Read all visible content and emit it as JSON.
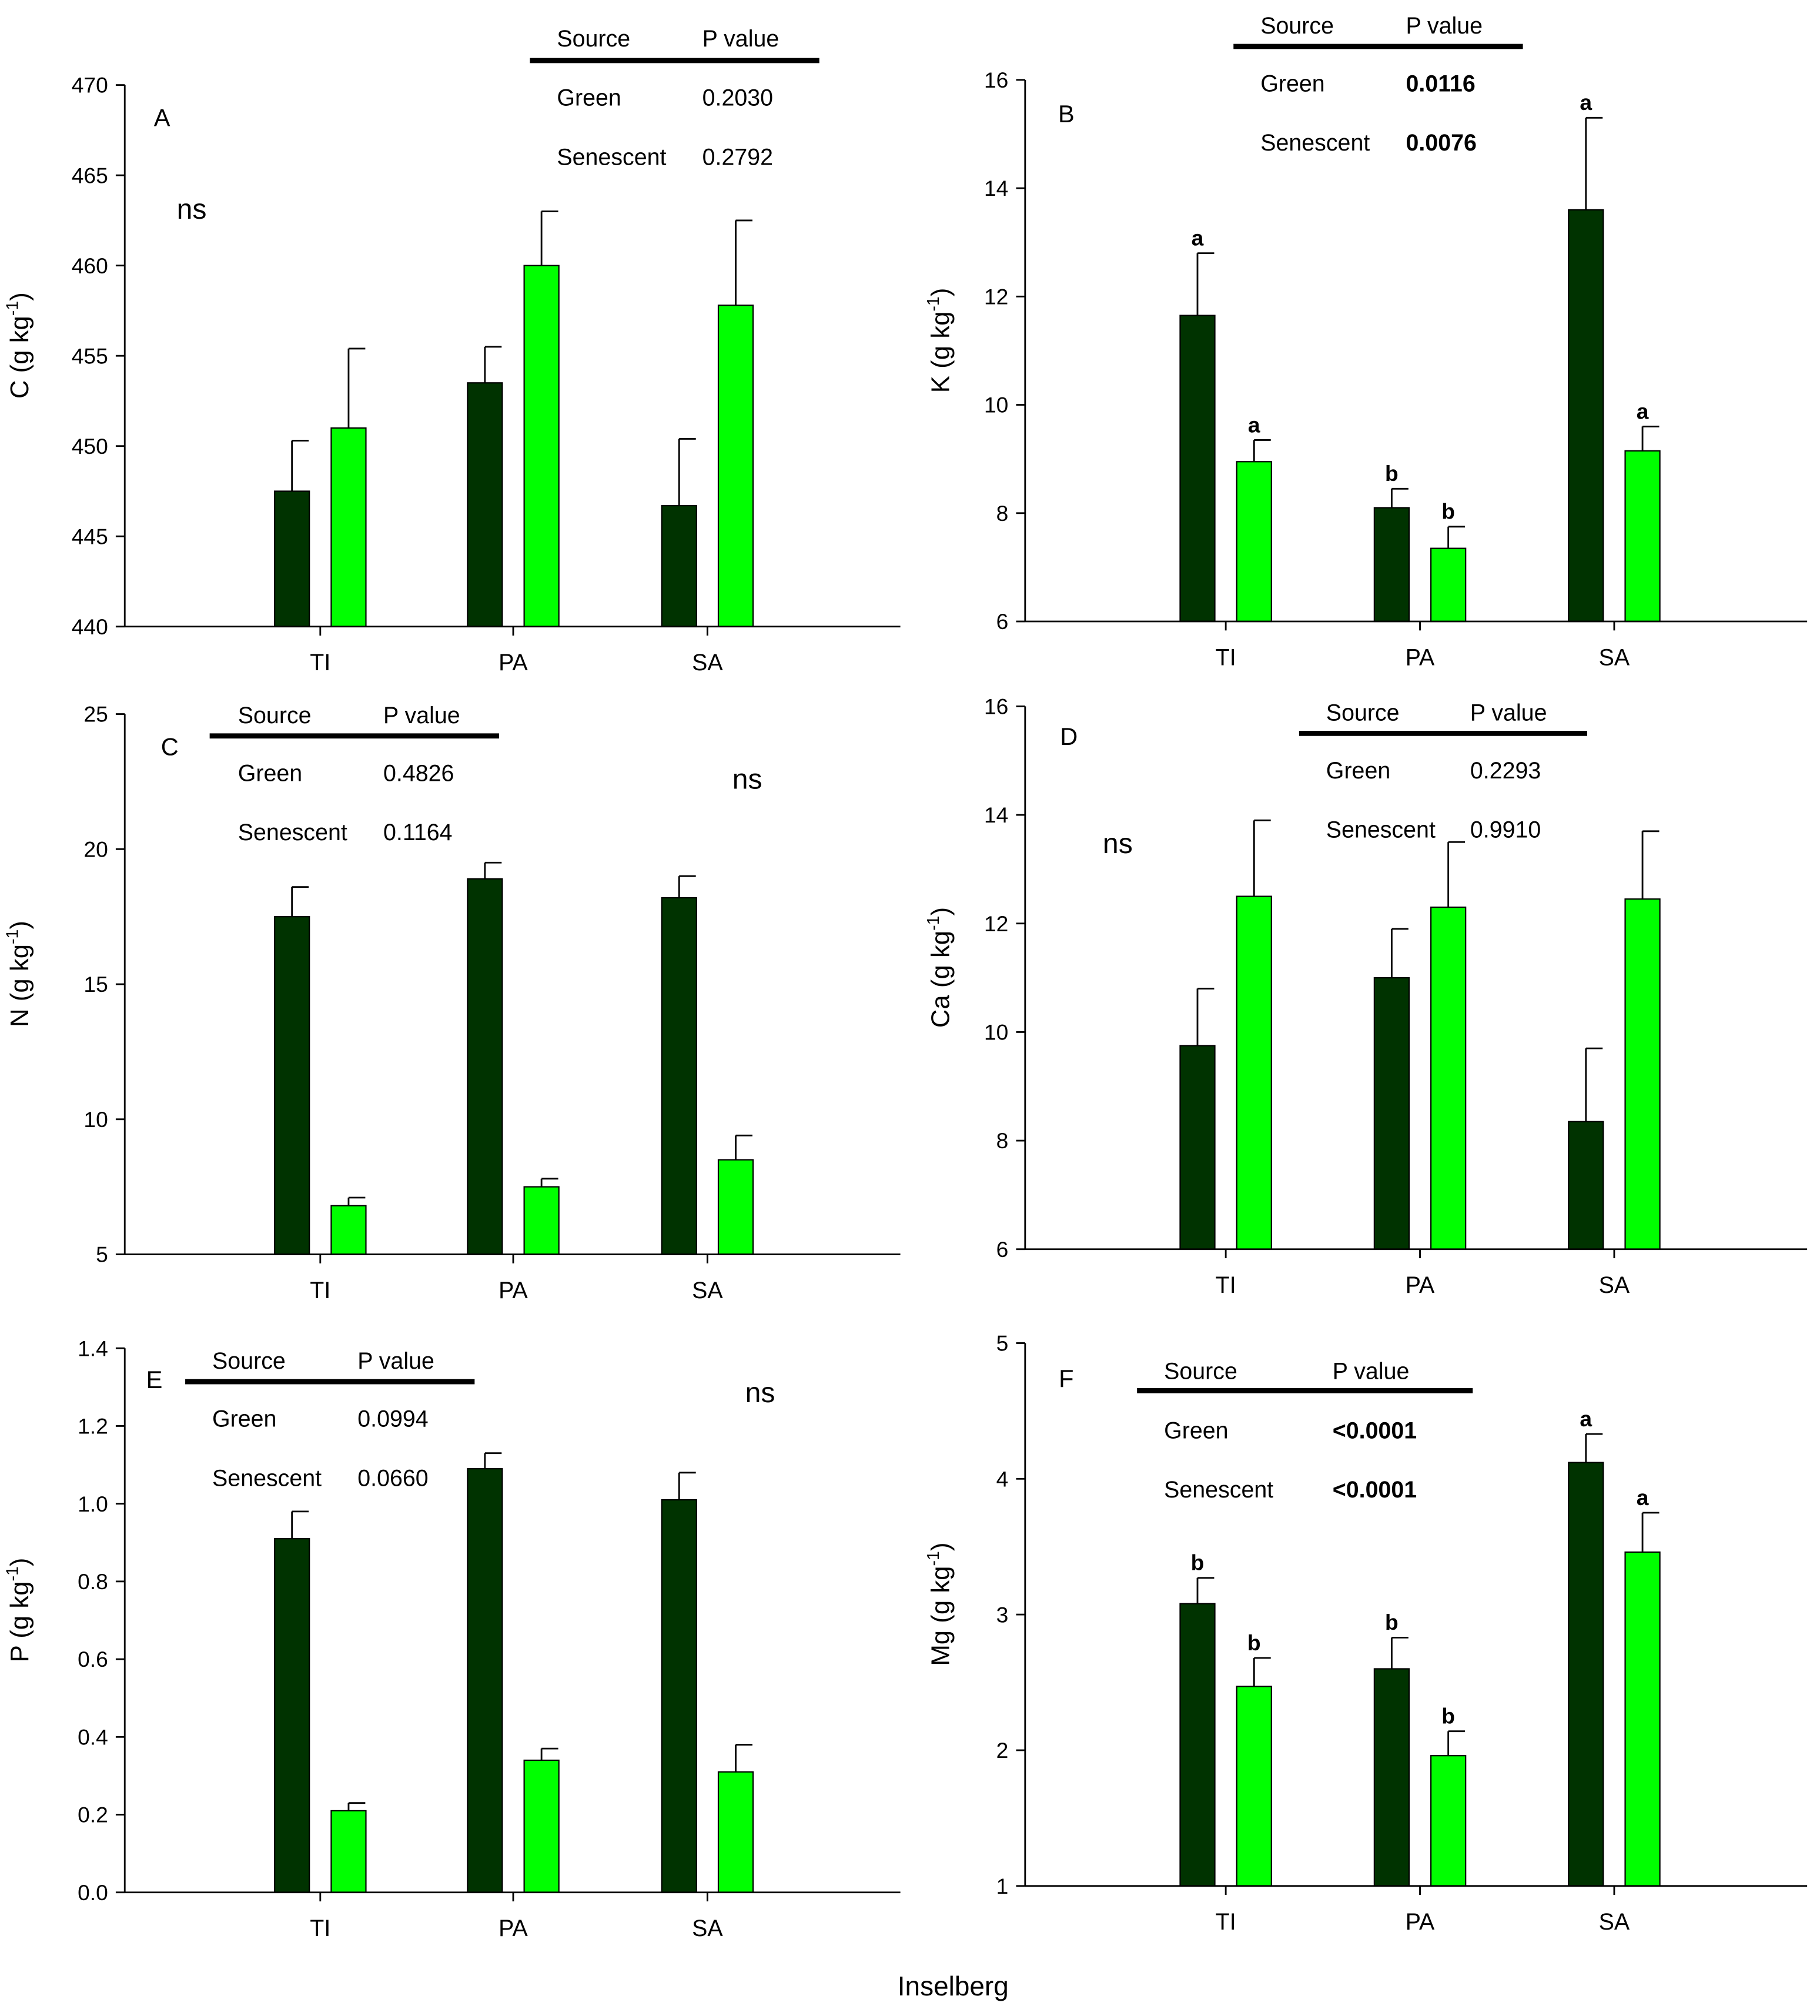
{
  "xlabel": "Inselberg",
  "legend": {
    "series": [
      "Green",
      "Senescent"
    ],
    "colors": [
      "#003300",
      "#00ff00"
    ]
  },
  "chart_data": [
    {
      "panel": "A",
      "type": "bar",
      "ylabel_main": "C (g kg",
      "ylabel_sup": "-1",
      "ylabel_end": ")",
      "ylim": [
        440,
        470
      ],
      "yticks": [
        440,
        445,
        450,
        455,
        460,
        465,
        470
      ],
      "categories": [
        "TI",
        "PA",
        "SA"
      ],
      "series": [
        {
          "name": "Green",
          "values": [
            447.5,
            453.5,
            446.7
          ],
          "errors": [
            2.8,
            2.0,
            3.7
          ],
          "letters": []
        },
        {
          "name": "Senescent",
          "values": [
            451.0,
            460.0,
            457.8
          ],
          "errors": [
            4.4,
            3.0,
            4.7
          ],
          "letters": []
        }
      ],
      "note": "ns",
      "table": {
        "header": [
          "Source",
          "P value"
        ],
        "rows": [
          [
            "Green",
            "0.2030"
          ],
          [
            "Senescent",
            "0.2792"
          ]
        ],
        "bold": false
      }
    },
    {
      "panel": "B",
      "type": "bar",
      "ylabel_main": "K (g kg",
      "ylabel_sup": "-1",
      "ylabel_end": ")",
      "ylim": [
        6,
        16
      ],
      "yticks": [
        6,
        8,
        10,
        12,
        14,
        16
      ],
      "categories": [
        "TI",
        "PA",
        "SA"
      ],
      "series": [
        {
          "name": "Green",
          "values": [
            11.65,
            8.1,
            13.6
          ],
          "errors": [
            1.15,
            0.35,
            1.7
          ],
          "letters": [
            "a",
            "b",
            "a"
          ]
        },
        {
          "name": "Senescent",
          "values": [
            8.95,
            7.35,
            9.15
          ],
          "errors": [
            0.4,
            0.4,
            0.45
          ],
          "letters": [
            "a",
            "b",
            "a"
          ]
        }
      ],
      "note": "",
      "table": {
        "header": [
          "Source",
          "P value"
        ],
        "rows": [
          [
            "Green",
            "0.0116"
          ],
          [
            "Senescent",
            "0.0076"
          ]
        ],
        "bold": true
      }
    },
    {
      "panel": "C",
      "type": "bar",
      "ylabel_main": "N (g kg",
      "ylabel_sup": "-1",
      "ylabel_end": ")",
      "ylim": [
        5,
        25
      ],
      "yticks": [
        5,
        10,
        15,
        20,
        25
      ],
      "categories": [
        "TI",
        "PA",
        "SA"
      ],
      "series": [
        {
          "name": "Green",
          "values": [
            17.5,
            18.9,
            18.2
          ],
          "errors": [
            1.1,
            0.6,
            0.8
          ],
          "letters": []
        },
        {
          "name": "Senescent",
          "values": [
            6.8,
            7.5,
            8.5
          ],
          "errors": [
            0.3,
            0.3,
            0.9
          ],
          "letters": []
        }
      ],
      "note": "ns",
      "table": {
        "header": [
          "Source",
          "P value"
        ],
        "rows": [
          [
            "Green",
            "0.4826"
          ],
          [
            "Senescent",
            "0.1164"
          ]
        ],
        "bold": false
      }
    },
    {
      "panel": "D",
      "type": "bar",
      "ylabel_main": "Ca (g kg",
      "ylabel_sup": "-1",
      "ylabel_end": ")",
      "ylim": [
        6,
        16
      ],
      "yticks": [
        6,
        8,
        10,
        12,
        14,
        16
      ],
      "categories": [
        "TI",
        "PA",
        "SA"
      ],
      "series": [
        {
          "name": "Green",
          "values": [
            9.75,
            11.0,
            8.35
          ],
          "errors": [
            1.05,
            0.9,
            1.35
          ],
          "letters": []
        },
        {
          "name": "Senescent",
          "values": [
            12.5,
            12.3,
            12.45
          ],
          "errors": [
            1.4,
            1.2,
            1.25
          ],
          "letters": []
        }
      ],
      "note": "ns",
      "table": {
        "header": [
          "Source",
          "P value"
        ],
        "rows": [
          [
            "Green",
            "0.2293"
          ],
          [
            "Senescent",
            "0.9910"
          ]
        ],
        "bold": false
      }
    },
    {
      "panel": "E",
      "type": "bar",
      "ylabel_main": "P (g kg",
      "ylabel_sup": "-1",
      "ylabel_end": ")",
      "ylim": [
        0,
        1.4
      ],
      "yticks": [
        "0.0",
        "0.2",
        "0.4",
        "0.6",
        "0.8",
        "1.0",
        "1.2",
        "1.4"
      ],
      "categories": [
        "TI",
        "PA",
        "SA"
      ],
      "series": [
        {
          "name": "Green",
          "values": [
            0.91,
            1.09,
            1.01
          ],
          "errors": [
            0.07,
            0.04,
            0.07
          ],
          "letters": []
        },
        {
          "name": "Senescent",
          "values": [
            0.21,
            0.34,
            0.31
          ],
          "errors": [
            0.02,
            0.03,
            0.07
          ],
          "letters": []
        }
      ],
      "note": "ns",
      "table": {
        "header": [
          "Source",
          "P value"
        ],
        "rows": [
          [
            "Green",
            "0.0994"
          ],
          [
            "Senescent",
            "0.0660"
          ]
        ],
        "bold": false
      }
    },
    {
      "panel": "F",
      "type": "bar",
      "ylabel_main": "Mg (g kg",
      "ylabel_sup": "-1",
      "ylabel_end": ")",
      "ylim": [
        1,
        5
      ],
      "yticks": [
        1,
        2,
        3,
        4,
        5
      ],
      "categories": [
        "TI",
        "PA",
        "SA"
      ],
      "series": [
        {
          "name": "Green",
          "values": [
            3.08,
            2.6,
            4.12
          ],
          "errors": [
            0.19,
            0.23,
            0.21
          ],
          "letters": [
            "b",
            "b",
            "a"
          ]
        },
        {
          "name": "Senescent",
          "values": [
            2.47,
            1.96,
            3.46
          ],
          "errors": [
            0.21,
            0.18,
            0.29
          ],
          "letters": [
            "b",
            "b",
            "a"
          ]
        }
      ],
      "note": "",
      "table": {
        "header": [
          "Source",
          "P value"
        ],
        "rows": [
          [
            "Green",
            "<0.0001"
          ],
          [
            "Senescent",
            "<0.0001"
          ]
        ],
        "bold": true
      }
    }
  ]
}
